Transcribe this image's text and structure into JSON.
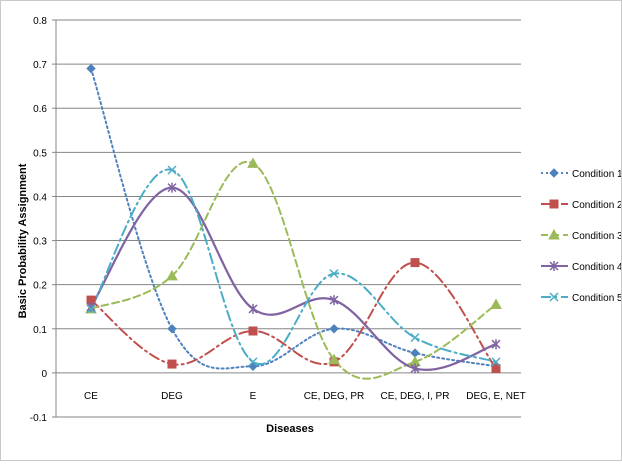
{
  "chart_data": {
    "type": "line",
    "title": "",
    "xlabel": "Diseases",
    "ylabel": "Basic Probability Assignment",
    "ylim": [
      -0.1,
      0.8
    ],
    "yticks": [
      "0.8",
      "0.7",
      "0.6",
      "0.5",
      "0.4",
      "0.3",
      "0.2",
      "0.1",
      "0",
      "-0.1"
    ],
    "categories": [
      "CE",
      "DEG",
      "E",
      "CE, DEG, PR",
      "CE, DEG, I, PR",
      "DEG, E, NET"
    ],
    "grid": true,
    "legend_position": "right",
    "series": [
      {
        "name": "Condition 1",
        "color": "#4f81bd",
        "dash": "2,3",
        "marker": "diamond",
        "values": [
          0.69,
          0.1,
          0.015,
          0.1,
          0.045,
          0.015
        ]
      },
      {
        "name": "Condition 2",
        "color": "#c0504d",
        "dash": "10,4,2,4",
        "marker": "square",
        "values": [
          0.165,
          0.02,
          0.095,
          0.025,
          0.25,
          0.01
        ]
      },
      {
        "name": "Condition 3",
        "color": "#9bbb59",
        "dash": "7,4",
        "marker": "triangle",
        "values": [
          0.145,
          0.22,
          0.475,
          0.03,
          0.025,
          0.155
        ]
      },
      {
        "name": "Condition 4",
        "color": "#8064a2",
        "dash": "",
        "marker": "star",
        "values": [
          0.15,
          0.42,
          0.145,
          0.165,
          0.01,
          0.065
        ]
      },
      {
        "name": "Condition 5",
        "color": "#4bacc6",
        "dash": "10,4,2,4",
        "marker": "x",
        "values": [
          0.145,
          0.46,
          0.025,
          0.225,
          0.08,
          0.025
        ]
      }
    ]
  }
}
